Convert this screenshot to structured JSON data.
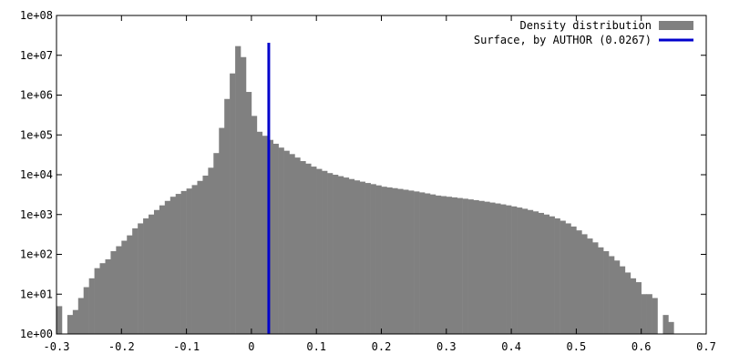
{
  "chart_data": {
    "type": "bar",
    "scale": {
      "y": "log",
      "x": "linear"
    },
    "xlim": [
      -0.3,
      0.7
    ],
    "ylim": [
      1,
      100000000
    ],
    "x_ticks": [
      "-0.3",
      "-0.2",
      "-0.1",
      "0",
      "0.1",
      "0.2",
      "0.3",
      "0.4",
      "0.5",
      "0.6",
      "0.7"
    ],
    "y_ticks": [
      "1e+00",
      "1e+01",
      "1e+02",
      "1e+03",
      "1e+04",
      "1e+05",
      "1e+06",
      "1e+07",
      "1e+08"
    ],
    "legend_position": "top-right",
    "grid": false,
    "series": [
      {
        "name": "Density distribution",
        "kind": "histogram",
        "color": "#808080",
        "bin_width": 0.00833,
        "x": [
          -0.2958,
          -0.2875,
          -0.2792,
          -0.2708,
          -0.2625,
          -0.2542,
          -0.2458,
          -0.2375,
          -0.2292,
          -0.2208,
          -0.2125,
          -0.2042,
          -0.1958,
          -0.1875,
          -0.1792,
          -0.1708,
          -0.1625,
          -0.1542,
          -0.1458,
          -0.1375,
          -0.1292,
          -0.1208,
          -0.1125,
          -0.1042,
          -0.0958,
          -0.0875,
          -0.0792,
          -0.0708,
          -0.0625,
          -0.0542,
          -0.0458,
          -0.0375,
          -0.0292,
          -0.0208,
          -0.0125,
          -0.0042,
          0.0042,
          0.0125,
          0.0208,
          0.0292,
          0.0375,
          0.0458,
          0.0542,
          0.0625,
          0.0708,
          0.0792,
          0.0875,
          0.0958,
          0.1042,
          0.1125,
          0.1208,
          0.1292,
          0.1375,
          0.1458,
          0.1542,
          0.1625,
          0.1708,
          0.1792,
          0.1875,
          0.1958,
          0.2042,
          0.2125,
          0.2208,
          0.2292,
          0.2375,
          0.2458,
          0.2542,
          0.2625,
          0.2708,
          0.2792,
          0.2875,
          0.2958,
          0.3042,
          0.3125,
          0.3208,
          0.3292,
          0.3375,
          0.3458,
          0.3542,
          0.3625,
          0.3708,
          0.3792,
          0.3875,
          0.3958,
          0.4042,
          0.4125,
          0.4208,
          0.4292,
          0.4375,
          0.4458,
          0.4542,
          0.4625,
          0.4708,
          0.4792,
          0.4875,
          0.4958,
          0.5042,
          0.5125,
          0.5208,
          0.5292,
          0.5375,
          0.5458,
          0.5542,
          0.5625,
          0.5708,
          0.5792,
          0.5875,
          0.5958,
          0.6042,
          0.6125,
          0.6208,
          0.6375,
          0.6458,
          0.6542
        ],
        "values": [
          5,
          0,
          3,
          4,
          8,
          15,
          25,
          45,
          60,
          75,
          120,
          160,
          220,
          300,
          450,
          600,
          800,
          1000,
          1300,
          1700,
          2200,
          2800,
          3300,
          3900,
          4500,
          5500,
          7000,
          9500,
          15000,
          35000,
          150000,
          800000,
          3500000,
          17000000,
          9000000,
          1200000,
          300000,
          120000,
          95000,
          75000,
          60000,
          48000,
          40000,
          33000,
          27000,
          22000,
          19000,
          16000,
          14000,
          12500,
          11000,
          10000,
          9200,
          8500,
          7800,
          7200,
          6700,
          6200,
          5800,
          5400,
          5000,
          4800,
          4600,
          4400,
          4200,
          4000,
          3800,
          3600,
          3400,
          3200,
          3000,
          2900,
          2800,
          2700,
          2600,
          2500,
          2400,
          2300,
          2200,
          2100,
          2000,
          1900,
          1800,
          1700,
          1600,
          1500,
          1400,
          1300,
          1200,
          1100,
          1000,
          900,
          800,
          700,
          600,
          500,
          400,
          320,
          250,
          200,
          150,
          120,
          90,
          70,
          50,
          35,
          25,
          20,
          10,
          10,
          8,
          3,
          2
        ]
      },
      {
        "name": "Surface, by AUTHOR (0.0267)",
        "kind": "vline",
        "color": "#0000cc",
        "x": 0.0267
      }
    ]
  }
}
